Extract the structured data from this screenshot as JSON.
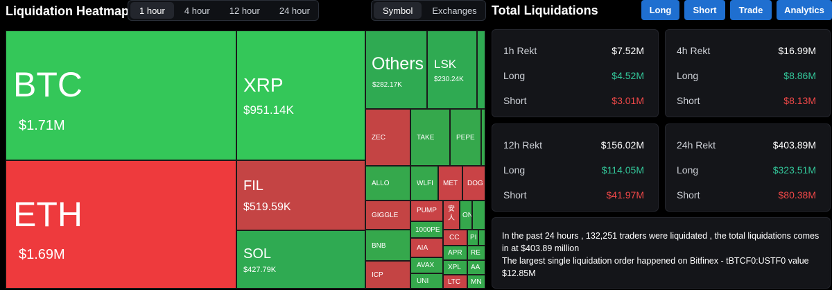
{
  "heatmap": {
    "title": "Liquidation Heatmap",
    "time_tabs": [
      {
        "label": "1 hour",
        "active": true
      },
      {
        "label": "4 hour",
        "active": false
      },
      {
        "label": "12 hour",
        "active": false
      },
      {
        "label": "24 hour",
        "active": false
      }
    ],
    "view_tabs": [
      {
        "label": "Symbol",
        "active": true
      },
      {
        "label": "Exchanges",
        "active": false
      }
    ],
    "tiles": {
      "btc": {
        "symbol": "BTC",
        "value": "$1.71M"
      },
      "eth": {
        "symbol": "ETH",
        "value": "$1.69M"
      },
      "xrp": {
        "symbol": "XRP",
        "value": "$951.14K"
      },
      "fil": {
        "symbol": "FIL",
        "value": "$519.59K"
      },
      "sol": {
        "symbol": "SOL",
        "value": "$427.79K"
      },
      "others": {
        "symbol": "Others",
        "value": "$282.17K"
      },
      "lsk": {
        "symbol": "LSK",
        "value": "$230.24K"
      },
      "zec": {
        "symbol": "ZEC"
      },
      "take": {
        "symbol": "TAKE"
      },
      "pepe": {
        "symbol": "PEPE"
      },
      "allo": {
        "symbol": "ALLO"
      },
      "wlfi": {
        "symbol": "WLFI"
      },
      "met": {
        "symbol": "MET"
      },
      "doge": {
        "symbol": "DOG"
      },
      "giggle": {
        "symbol": "GIGGLE"
      },
      "pump": {
        "symbol": "PUMP"
      },
      "anren": {
        "symbol": "安人"
      },
      "on": {
        "symbol": "ON"
      },
      "1000pe": {
        "symbol": "1000PE"
      },
      "cc": {
        "symbol": "CC"
      },
      "pi": {
        "symbol": "PI"
      },
      "bnb": {
        "symbol": "BNB"
      },
      "aia": {
        "symbol": "AIA"
      },
      "apr": {
        "symbol": "APR"
      },
      "re": {
        "symbol": "RE"
      },
      "avax": {
        "symbol": "AVAX"
      },
      "xpl": {
        "symbol": "XPL"
      },
      "aa": {
        "symbol": "AA"
      },
      "icp": {
        "symbol": "ICP"
      },
      "uni": {
        "symbol": "UNI"
      },
      "ltc": {
        "symbol": "LTC"
      },
      "mn": {
        "symbol": "MN"
      }
    }
  },
  "total": {
    "title": "Total Liquidations",
    "nav": [
      "Long",
      "Short",
      "Trade",
      "Analytics"
    ],
    "cards": [
      {
        "period": "1h Rekt",
        "total": "$7.52M",
        "long_label": "Long",
        "long": "$4.52M",
        "short_label": "Short",
        "short": "$3.01M"
      },
      {
        "period": "4h Rekt",
        "total": "$16.99M",
        "long_label": "Long",
        "long": "$8.86M",
        "short_label": "Short",
        "short": "$8.13M"
      },
      {
        "period": "12h Rekt",
        "total": "$156.02M",
        "long_label": "Long",
        "long": "$114.05M",
        "short_label": "Short",
        "short": "$41.97M"
      },
      {
        "period": "24h Rekt",
        "total": "$403.89M",
        "long_label": "Long",
        "long": "$323.51M",
        "short_label": "Short",
        "short": "$80.38M"
      }
    ],
    "summary": {
      "line1": "In the past 24 hours , 132,251 traders were liquidated , the total liquidations comes in at $403.89 million",
      "line2": "The largest single liquidation order happened on Bitfinex - tBTCF0:USTF0 value $12.85M"
    }
  },
  "colors": {
    "long_green": "#34c759",
    "short_red": "#ee3a3d",
    "nav_blue": "#1f6fd0",
    "long_text": "#33c79a",
    "short_text": "#f04848"
  }
}
